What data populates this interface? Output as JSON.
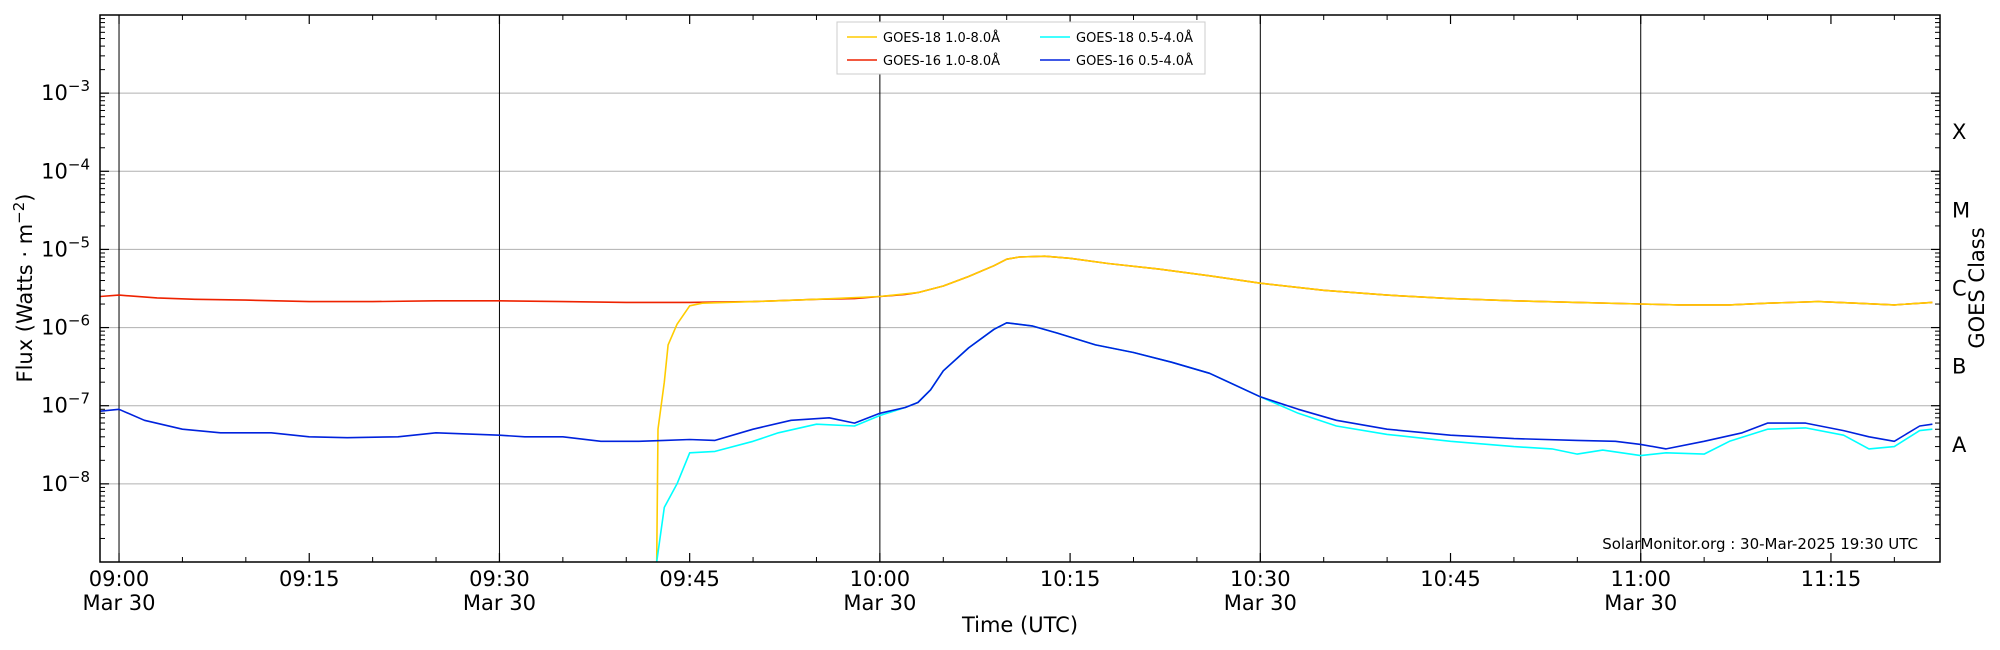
{
  "chart_data": {
    "type": "line",
    "title": "",
    "xlabel": "Time (UTC)",
    "ylabel_main": "Flux (Watts · m",
    "ylabel_exp": "−2",
    "ylabel_close": ")",
    "right_label": "GOES Class",
    "y_scale": "log",
    "ylim": [
      1e-09,
      0.01
    ],
    "xlim_minutes": [
      538.5,
      683.6
    ],
    "legend_placement": "top-center",
    "grid": "horizontal at decades, vertical at half hours",
    "credit": "SolarMonitor.org : 30-Mar-2025 19:30 UTC",
    "x_ticks": [
      {
        "minutes": 540,
        "time": "09:00",
        "date": "Mar 30"
      },
      {
        "minutes": 555,
        "time": "09:15",
        "date": ""
      },
      {
        "minutes": 570,
        "time": "09:30",
        "date": "Mar 30"
      },
      {
        "minutes": 585,
        "time": "09:45",
        "date": ""
      },
      {
        "minutes": 600,
        "time": "10:00",
        "date": "Mar 30"
      },
      {
        "minutes": 615,
        "time": "10:15",
        "date": ""
      },
      {
        "minutes": 630,
        "time": "10:30",
        "date": "Mar 30"
      },
      {
        "minutes": 645,
        "time": "10:45",
        "date": ""
      },
      {
        "minutes": 660,
        "time": "11:00",
        "date": "Mar 30"
      },
      {
        "minutes": 675,
        "time": "11:15",
        "date": ""
      }
    ],
    "y_ticks": [
      {
        "exp": -8,
        "base": "10",
        "sup": "−8"
      },
      {
        "exp": -7,
        "base": "10",
        "sup": "−7"
      },
      {
        "exp": -6,
        "base": "10",
        "sup": "−6"
      },
      {
        "exp": -5,
        "base": "10",
        "sup": "−5"
      },
      {
        "exp": -4,
        "base": "10",
        "sup": "−4"
      },
      {
        "exp": -3,
        "base": "10",
        "sup": "−3"
      }
    ],
    "goes_classes": [
      {
        "label": "A",
        "log_center": -7.5
      },
      {
        "label": "B",
        "log_center": -6.5
      },
      {
        "label": "C",
        "log_center": -5.5
      },
      {
        "label": "M",
        "log_center": -4.5
      },
      {
        "label": "X",
        "log_center": -3.5
      }
    ],
    "series": [
      {
        "name": "GOES-16 1.0-8.0",
        "color": "#ee2200",
        "points": [
          [
            538.5,
            2.5e-06
          ],
          [
            540,
            2.6e-06
          ],
          [
            543,
            2.4e-06
          ],
          [
            546,
            2.3e-06
          ],
          [
            550,
            2.25e-06
          ],
          [
            555,
            2.15e-06
          ],
          [
            560,
            2.15e-06
          ],
          [
            565,
            2.2e-06
          ],
          [
            570,
            2.2e-06
          ],
          [
            575,
            2.15e-06
          ],
          [
            580,
            2.1e-06
          ],
          [
            585,
            2.1e-06
          ],
          [
            590,
            2.15e-06
          ],
          [
            595,
            2.3e-06
          ],
          [
            598,
            2.35e-06
          ],
          [
            600,
            2.5e-06
          ],
          [
            602,
            2.65e-06
          ],
          [
            603,
            2.8e-06
          ],
          [
            605,
            3.4e-06
          ],
          [
            607,
            4.5e-06
          ],
          [
            609,
            6.2e-06
          ],
          [
            610,
            7.5e-06
          ],
          [
            611,
            8e-06
          ],
          [
            613,
            8.2e-06
          ],
          [
            615,
            7.7e-06
          ],
          [
            618,
            6.6e-06
          ],
          [
            622,
            5.6e-06
          ],
          [
            626,
            4.6e-06
          ],
          [
            630,
            3.7e-06
          ],
          [
            635,
            3e-06
          ],
          [
            640,
            2.6e-06
          ],
          [
            645,
            2.35e-06
          ],
          [
            650,
            2.2e-06
          ],
          [
            655,
            2.1e-06
          ],
          [
            660,
            2e-06
          ],
          [
            663,
            1.95e-06
          ],
          [
            667,
            1.95e-06
          ],
          [
            670,
            2.05e-06
          ],
          [
            674,
            2.15e-06
          ],
          [
            677,
            2.05e-06
          ],
          [
            680,
            1.95e-06
          ],
          [
            683,
            2.1e-06
          ]
        ]
      },
      {
        "name": "GOES-18 1.0-8.0",
        "color": "#ffcc00",
        "points": [
          [
            582.4,
            1e-09
          ],
          [
            582.5,
            5e-08
          ],
          [
            583,
            2e-07
          ],
          [
            583.3,
            6e-07
          ],
          [
            584,
            1.1e-06
          ],
          [
            585,
            1.9e-06
          ],
          [
            586,
            2.05e-06
          ],
          [
            590,
            2.15e-06
          ],
          [
            595,
            2.3e-06
          ],
          [
            600,
            2.5e-06
          ],
          [
            603,
            2.8e-06
          ],
          [
            605,
            3.4e-06
          ],
          [
            607,
            4.5e-06
          ],
          [
            609,
            6.2e-06
          ],
          [
            610,
            7.5e-06
          ],
          [
            611,
            8e-06
          ],
          [
            613,
            8.2e-06
          ],
          [
            615,
            7.7e-06
          ],
          [
            618,
            6.6e-06
          ],
          [
            622,
            5.6e-06
          ],
          [
            626,
            4.6e-06
          ],
          [
            630,
            3.7e-06
          ],
          [
            635,
            3e-06
          ],
          [
            640,
            2.6e-06
          ],
          [
            645,
            2.35e-06
          ],
          [
            650,
            2.2e-06
          ],
          [
            655,
            2.1e-06
          ],
          [
            660,
            2e-06
          ],
          [
            663,
            1.95e-06
          ],
          [
            667,
            1.95e-06
          ],
          [
            670,
            2.05e-06
          ],
          [
            674,
            2.15e-06
          ],
          [
            677,
            2.05e-06
          ],
          [
            680,
            1.95e-06
          ],
          [
            683,
            2.1e-06
          ]
        ]
      },
      {
        "name": "GOES-18 0.5-4.0",
        "color": "#00ffff",
        "points": [
          [
            582.4,
            1e-09
          ],
          [
            583,
            5e-09
          ],
          [
            584,
            1e-08
          ],
          [
            585,
            2.5e-08
          ],
          [
            587,
            2.6e-08
          ],
          [
            590,
            3.5e-08
          ],
          [
            592,
            4.5e-08
          ],
          [
            595,
            5.8e-08
          ],
          [
            598,
            5.5e-08
          ],
          [
            600,
            7.5e-08
          ],
          [
            602,
            9.5e-08
          ],
          [
            603,
            1.1e-07
          ],
          [
            604,
            1.6e-07
          ],
          [
            605,
            2.8e-07
          ],
          [
            607,
            5.5e-07
          ],
          [
            609,
            9.5e-07
          ],
          [
            610,
            1.15e-06
          ],
          [
            612,
            1.05e-06
          ],
          [
            614,
            8.5e-07
          ],
          [
            617,
            6e-07
          ],
          [
            620,
            4.8e-07
          ],
          [
            623,
            3.6e-07
          ],
          [
            626,
            2.6e-07
          ],
          [
            630,
            1.3e-07
          ],
          [
            633,
            8e-08
          ],
          [
            636,
            5.5e-08
          ],
          [
            640,
            4.3e-08
          ],
          [
            645,
            3.5e-08
          ],
          [
            650,
            3e-08
          ],
          [
            653,
            2.8e-08
          ],
          [
            655,
            2.4e-08
          ],
          [
            657,
            2.7e-08
          ],
          [
            660,
            2.3e-08
          ],
          [
            662,
            2.5e-08
          ],
          [
            665,
            2.4e-08
          ],
          [
            667,
            3.5e-08
          ],
          [
            670,
            5e-08
          ],
          [
            673,
            5.2e-08
          ],
          [
            676,
            4.2e-08
          ],
          [
            678,
            2.8e-08
          ],
          [
            680,
            3e-08
          ],
          [
            682,
            4.8e-08
          ],
          [
            683,
            5e-08
          ]
        ]
      },
      {
        "name": "GOES-16 0.5-4.0",
        "color": "#0022dd",
        "points": [
          [
            538.5,
            8.5e-08
          ],
          [
            540,
            9e-08
          ],
          [
            542,
            6.5e-08
          ],
          [
            545,
            5e-08
          ],
          [
            548,
            4.5e-08
          ],
          [
            552,
            4.5e-08
          ],
          [
            555,
            4e-08
          ],
          [
            558,
            3.9e-08
          ],
          [
            562,
            4e-08
          ],
          [
            565,
            4.5e-08
          ],
          [
            570,
            4.2e-08
          ],
          [
            572,
            4e-08
          ],
          [
            575,
            4e-08
          ],
          [
            578,
            3.5e-08
          ],
          [
            581,
            3.5e-08
          ],
          [
            583,
            3.6e-08
          ],
          [
            585,
            3.7e-08
          ],
          [
            587,
            3.6e-08
          ],
          [
            590,
            5e-08
          ],
          [
            593,
            6.5e-08
          ],
          [
            596,
            7e-08
          ],
          [
            598,
            6e-08
          ],
          [
            600,
            8e-08
          ],
          [
            602,
            9.5e-08
          ],
          [
            603,
            1.1e-07
          ],
          [
            604,
            1.6e-07
          ],
          [
            605,
            2.8e-07
          ],
          [
            607,
            5.5e-07
          ],
          [
            609,
            9.5e-07
          ],
          [
            610,
            1.15e-06
          ],
          [
            612,
            1.05e-06
          ],
          [
            614,
            8.5e-07
          ],
          [
            617,
            6e-07
          ],
          [
            620,
            4.8e-07
          ],
          [
            623,
            3.6e-07
          ],
          [
            626,
            2.6e-07
          ],
          [
            630,
            1.3e-07
          ],
          [
            633,
            9e-08
          ],
          [
            636,
            6.5e-08
          ],
          [
            640,
            5e-08
          ],
          [
            645,
            4.2e-08
          ],
          [
            650,
            3.8e-08
          ],
          [
            655,
            3.6e-08
          ],
          [
            658,
            3.5e-08
          ],
          [
            660,
            3.2e-08
          ],
          [
            662,
            2.8e-08
          ],
          [
            665,
            3.5e-08
          ],
          [
            668,
            4.5e-08
          ],
          [
            670,
            6e-08
          ],
          [
            673,
            6e-08
          ],
          [
            676,
            4.8e-08
          ],
          [
            678,
            4e-08
          ],
          [
            680,
            3.5e-08
          ],
          [
            682,
            5.5e-08
          ],
          [
            683,
            5.8e-08
          ]
        ]
      }
    ],
    "legend": [
      {
        "series": 1,
        "label": "GOES-18 1.0-8.0"
      },
      {
        "series": 0,
        "label": "GOES-16 1.0-8.0"
      },
      {
        "series": 2,
        "label": "GOES-18 0.5-4.0"
      },
      {
        "series": 3,
        "label": "GOES-16 0.5-4.0"
      }
    ],
    "legend_unit": "Å"
  }
}
